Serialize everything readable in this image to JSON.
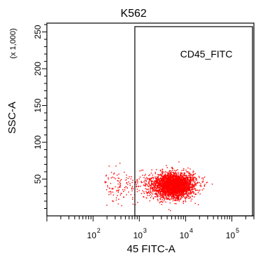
{
  "chart_data": {
    "type": "scatter",
    "title": "K562",
    "xlabel": "45 FITC-A",
    "ylabel": "SSC-A",
    "y_multiplier_label": "(x 1,000)",
    "x_scale": "log",
    "xlim": [
      10,
      300000
    ],
    "x_ticks": [
      {
        "value": 100,
        "base": "10",
        "exp": "2"
      },
      {
        "value": 1000,
        "base": "10",
        "exp": "3"
      },
      {
        "value": 10000,
        "base": "10",
        "exp": "4"
      },
      {
        "value": 100000,
        "base": "10",
        "exp": "5"
      }
    ],
    "ylim": [
      0,
      262
    ],
    "y_ticks": [
      50,
      100,
      150,
      200,
      250
    ],
    "gate": {
      "name": "CD45_FITC",
      "x_range": [
        800,
        300000
      ],
      "y_range": [
        0,
        262
      ]
    },
    "population": {
      "color": "#ff0000",
      "description_points": [
        {
          "x": 5500,
          "y": 42
        },
        {
          "x": 8000,
          "y": 60
        },
        {
          "x": 2500,
          "y": 30
        },
        {
          "x": 15000,
          "y": 55
        }
      ]
    },
    "grid": false
  }
}
